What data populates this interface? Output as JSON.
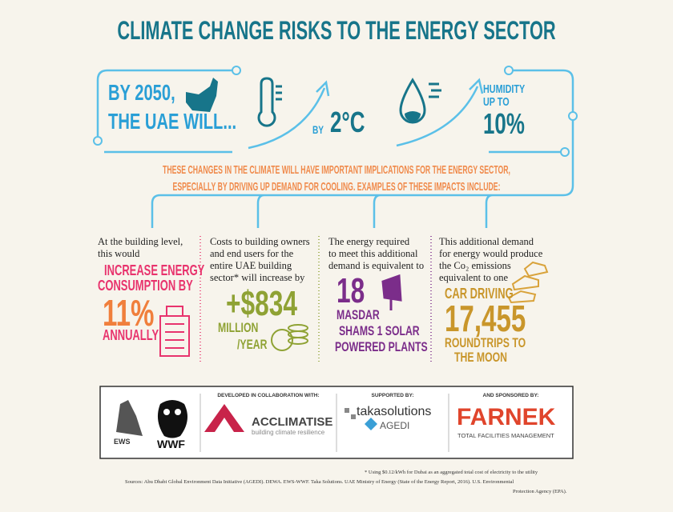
{
  "title": "CLIMATE CHANGE RISKS TO THE ENERGY SECTOR",
  "intro": {
    "lead": [
      "BY 2050,",
      "THE UAE WILL..."
    ],
    "temperature": {
      "prefix": "BY",
      "value": "2°C"
    },
    "humidity": {
      "label": [
        "HUMIDITY",
        "UP TO"
      ],
      "value": "10%"
    }
  },
  "implications": [
    "THESE CHANGES IN THE CLIMATE WILL HAVE IMPORTANT IMPLICATIONS FOR THE ENERGY SECTOR,",
    "ESPECIALLY BY DRIVING UP DEMAND FOR COOLING. EXAMPLES OF THESE IMPACTS INCLUDE:"
  ],
  "impacts": [
    {
      "text": [
        "At the building level,",
        "this would"
      ],
      "highlight": [
        "INCREASE ENERGY",
        "CONSUMPTION BY"
      ],
      "figure": "11%",
      "unit": [
        "ANNUALLY"
      ]
    },
    {
      "text": [
        "Costs to building owners",
        "and end users for the",
        "entire UAE building",
        "sector* will increase by"
      ],
      "figure": "+$834",
      "unit": [
        "MILLION",
        "/YEAR"
      ]
    },
    {
      "text": [
        "The energy required",
        "to meet this additional",
        "demand is equivalent to"
      ],
      "figure": "18",
      "unit": [
        "MASDAR",
        "SHAMS 1 SOLAR",
        "POWERED PLANTS"
      ]
    },
    {
      "text": [
        "This additional demand",
        "for energy would produce",
        "the Co₂ emissions",
        "equivalent to one"
      ],
      "highlight": [
        "CAR DRIVING"
      ],
      "figure": "17,455",
      "unit": [
        "ROUNDTRIPS TO",
        "THE MOON"
      ]
    }
  ],
  "partners": {
    "logos": [
      "EWS",
      "WWF"
    ],
    "collaboration": {
      "label": "DEVELOPED IN COLLABORATION WITH:",
      "name": "ACCLIMATISE",
      "tagline": "building climate resilience"
    },
    "support": {
      "label": "SUPPORTED BY:",
      "names": [
        "takasolutions",
        "AGEDI"
      ]
    },
    "sponsor": {
      "label": "AND SPONSORED BY:",
      "name": "FARNEK",
      "tagline": "TOTAL FACILITIES MANAGEMENT"
    }
  },
  "footnote": "* Using $0.12/kWh for Dubai as an aggregated total cost of electricity to the utility",
  "sources": [
    "Sources: Abu Dhabi Global Environment Data Initiative (AGEDI). DEWA. EWS-WWF. Taka Solutions. UAE Ministry of Energy (State of the Energy Report, 2016). U.S. Environmental",
    "Protection Agency (EPA)."
  ]
}
